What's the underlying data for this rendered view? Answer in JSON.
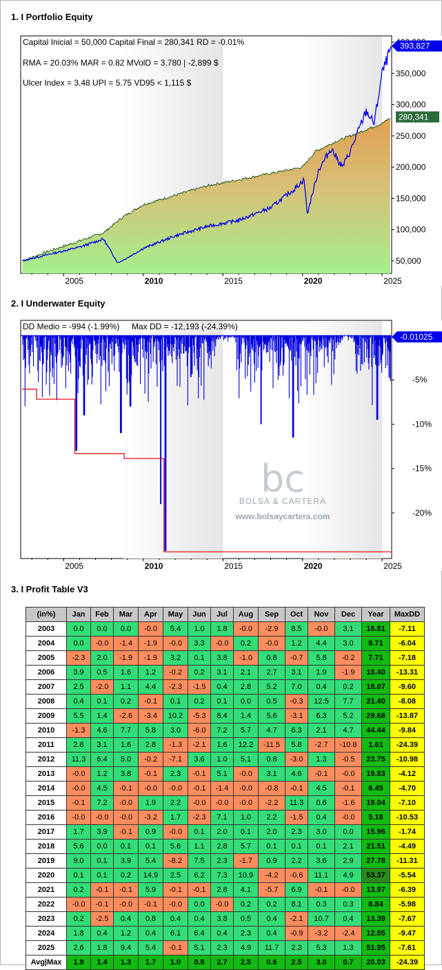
{
  "sections": {
    "equity_title": "1. I Portfolio Equity",
    "underwater_title": "2. I Underwater Equity",
    "profit_title": "3. I Profit Table V3"
  },
  "equity": {
    "info_line1": "Capital Inicial = 50,000  Capital Final = 280,341   RD = -0.01%",
    "info_line2": "RMA = 20.03%   MAR = 0.82   MVolD = 3,780 | -2,899 $",
    "info_line3": "Ulcer Index = 3.48   UPI = 5.75   VD95 < 1,115 $",
    "badge_blue": "393,827",
    "badge_green": "280,341",
    "blue_color": "#0000ee",
    "green_badge_color": "#2e6b3a",
    "y_ticks": [
      "50,000",
      "100,000",
      "150,000",
      "200,000",
      "250,000",
      "300,000",
      "350,000",
      "400,000"
    ],
    "x_ticks": [
      "2005",
      "2010",
      "2015",
      "2020",
      "2025"
    ]
  },
  "underwater": {
    "info_left": "DD Medio = -994 (-1.99%)",
    "info_right": "Max DD = -12,193 (-24.39%)",
    "badge": "-0.01025",
    "y_ticks": [
      "-5%",
      "-10%",
      "-15%",
      "-20%"
    ],
    "x_ticks": [
      "2005",
      "2010",
      "2015",
      "2020",
      "2025"
    ],
    "watermark_title": "BOLSA & CARTERA",
    "watermark_url": "www.bolsaycartera.com"
  },
  "chart_data": [
    {
      "type": "area",
      "title": "1. I Portfolio Equity",
      "ylim": [
        30000,
        410000
      ],
      "xlim": [
        2002.3,
        2025.6
      ],
      "series": [
        {
          "values_x": [
            2002.4,
            2004,
            2006,
            2007.5,
            2008.7,
            2010,
            2012,
            2014,
            2016,
            2018,
            2020,
            2020.8,
            2022,
            2023.5,
            2025,
            2025.6
          ],
          "values": [
            50000,
            65000,
            82000,
            95000,
            120000,
            140000,
            155000,
            170000,
            180000,
            190000,
            200000,
            225000,
            240000,
            255000,
            270000,
            280341
          ]
        },
        {
          "values_x": [
            2002.4,
            2004,
            2006,
            2007.5,
            2008.4,
            2009,
            2010,
            2012,
            2014,
            2016,
            2018,
            2019.5,
            2020.1,
            2020.3,
            2021,
            2021.8,
            2022.5,
            2023,
            2024,
            2024.5,
            2025,
            2025.6
          ],
          "values": [
            50000,
            60000,
            72000,
            85000,
            47000,
            55000,
            70000,
            90000,
            105000,
            115000,
            135000,
            165000,
            180000,
            125000,
            195000,
            230000,
            200000,
            225000,
            290000,
            270000,
            350000,
            393827
          ]
        }
      ]
    },
    {
      "type": "line",
      "title": "2. I Underwater Equity",
      "ylim": [
        -25,
        0
      ],
      "series": [
        {
          "values_x": [
            2002.4,
            2003.3,
            2003.3,
            2005.7,
            2005.7,
            2008.8,
            2008.8,
            2011.3,
            2011.3,
            2025.6
          ],
          "values": [
            -6.04,
            -6.04,
            -7.18,
            -7.18,
            -13.31,
            -13.31,
            -13.87,
            -13.87,
            -24.39,
            -24.39
          ]
        }
      ]
    },
    {
      "type": "table",
      "title": "3. I Profit Table V3",
      "headers": [
        "(in%)",
        "Jan",
        "Feb",
        "Mar",
        "Apr",
        "May",
        "Jun",
        "Jul",
        "Aug",
        "Sep",
        "Oct",
        "Nov",
        "Dec",
        "Year",
        "MaxDD"
      ],
      "rows": [
        [
          "2003",
          "0.0",
          "0.0",
          "0.0",
          "-0.0",
          "5.4",
          "1.0",
          "1.8",
          "-0.0",
          "-2.9",
          "8.5",
          "-0.0",
          "3.1",
          "16.81",
          "-7.11"
        ],
        [
          "2004",
          "0.0",
          "-0.0",
          "-1.4",
          "-1.9",
          "-0.0",
          "3.3",
          "-0.0",
          "0.2",
          "-0.0",
          "1.2",
          "4.4",
          "3.0",
          "8.71",
          "-6.04"
        ],
        [
          "2005",
          "-2.3",
          "2.0",
          "-1.9",
          "-1.9",
          "3.2",
          "0.1",
          "3.8",
          "-1.0",
          "0.8",
          "-0.7",
          "5.8",
          "-0.2",
          "7.71",
          "-7.18"
        ],
        [
          "2006",
          "3.9",
          "0.5",
          "1.6",
          "1.2",
          "-0.2",
          "0.2",
          "3.1",
          "2.1",
          "2.7",
          "3.1",
          "1.9",
          "-1.9",
          "18.40",
          "-13.31"
        ],
        [
          "2007",
          "2.5",
          "-2.0",
          "1.1",
          "4.4",
          "-2.3",
          "-1.5",
          "0.4",
          "2.8",
          "5.2",
          "7.0",
          "0.4",
          "0.2",
          "18.07",
          "-9.60"
        ],
        [
          "2008",
          "0.4",
          "0.1",
          "0.2",
          "-0.1",
          "0.1",
          "0.2",
          "0.1",
          "0.0",
          "0.5",
          "-0.3",
          "12.5",
          "7.7",
          "21.40",
          "-8.08"
        ],
        [
          "2009",
          "5.5",
          "1.4",
          "-2.6",
          "-3.4",
          "10.2",
          "-5.3",
          "8.4",
          "1.4",
          "5.6",
          "-3.1",
          "6.3",
          "5.2",
          "29.68",
          "-13.87"
        ],
        [
          "2010",
          "-1.3",
          "4.6",
          "7.7",
          "5.8",
          "3.0",
          "-6.0",
          "7.2",
          "5.7",
          "4.7",
          "6.3",
          "2.1",
          "4.7",
          "44.44",
          "-9.84"
        ],
        [
          "2011",
          "2.8",
          "3.1",
          "1.6",
          "2.8",
          "-1.3",
          "-2.1",
          "1.6",
          "12.2",
          "-11.5",
          "5.8",
          "-2.7",
          "-10.8",
          "1.61",
          "-24.39"
        ],
        [
          "2012",
          "11.3",
          "6.4",
          "5.0",
          "-0.2",
          "-7.1",
          "3.6",
          "1.0",
          "5.1",
          "0.8",
          "-3.0",
          "1.3",
          "-0.5",
          "23.75",
          "-10.98"
        ],
        [
          "2013",
          "-0.0",
          "1.2",
          "3.8",
          "-0.1",
          "2.3",
          "-0.1",
          "5.1",
          "-0.0",
          "3.1",
          "4.6",
          "-0.1",
          "-0.0",
          "19.83",
          "-4.12"
        ],
        [
          "2014",
          "-0.0",
          "4.5",
          "-0.1",
          "-0.0",
          "-0.0",
          "-0.1",
          "-1.4",
          "-0.0",
          "-0.8",
          "-0.1",
          "4.5",
          "-0.1",
          "6.45",
          "-4.70"
        ],
        [
          "2015",
          "-0.1",
          "7.2",
          "-0.0",
          "1.9",
          "2.2",
          "-0.0",
          "-0.0",
          "-0.0",
          "-2.2",
          "11.3",
          "0.6",
          "-1.6",
          "19.04",
          "-7.10"
        ],
        [
          "2016",
          "-0.0",
          "-0.0",
          "-0.0",
          "-3.2",
          "1.7",
          "-2.3",
          "7.1",
          "1.0",
          "2.2",
          "-1.5",
          "0.4",
          "-0.0",
          "5.18",
          "-10.53"
        ],
        [
          "2017",
          "1.7",
          "3.9",
          "-0.1",
          "0.9",
          "-0.0",
          "0.1",
          "2.0",
          "0.1",
          "2.0",
          "2.3",
          "3.0",
          "0.0",
          "15.96",
          "-1.74"
        ],
        [
          "2018",
          "5.6",
          "0.0",
          "0.1",
          "0.1",
          "5.6",
          "1.1",
          "2.8",
          "5.7",
          "0.1",
          "0.1",
          "0.1",
          "2.1",
          "21.51",
          "-4.49"
        ],
        [
          "2019",
          "9.0",
          "0.1",
          "3.9",
          "5.4",
          "-8.2",
          "7.5",
          "2.3",
          "-1.7",
          "0.9",
          "2.2",
          "3.6",
          "2.9",
          "27.78",
          "-11.31"
        ],
        [
          "2020",
          "0.1",
          "0.1",
          "0.2",
          "14.9",
          "2.5",
          "6.2",
          "7.3",
          "10.9",
          "-4.2",
          "-0.6",
          "11.1",
          "4.9",
          "53.37",
          "-5.54"
        ],
        [
          "2021",
          "0.2",
          "-0.1",
          "-0.1",
          "5.9",
          "-0.1",
          "-0.1",
          "2.8",
          "4.1",
          "-5.7",
          "6.9",
          "-0.1",
          "-0.0",
          "13.97",
          "-6.39"
        ],
        [
          "2022",
          "-0.0",
          "-0.1",
          "-0.0",
          "-0.1",
          "-0.0",
          "0.0",
          "-0.0",
          "0.2",
          "0.2",
          "8.1",
          "0.3",
          "0.3",
          "8.84",
          "-5.98"
        ],
        [
          "2023",
          "0.2",
          "-2.5",
          "0.4",
          "0.8",
          "0.4",
          "0.4",
          "3.8",
          "0.5",
          "0.4",
          "-2.1",
          "10.7",
          "0.4",
          "13.39",
          "-7.67"
        ],
        [
          "2024",
          "1.8",
          "0.4",
          "1.2",
          "0.4",
          "6.1",
          "6.4",
          "0.4",
          "2.3",
          "0.4",
          "-0.9",
          "-3.2",
          "-2.4",
          "12.85",
          "-9.47"
        ],
        [
          "2025",
          "2.6",
          "1.8",
          "9.4",
          "5.4",
          "-0.1",
          "5.1",
          "2.3",
          "4.9",
          "11.7",
          "2.3",
          "5.3",
          "1.3",
          "51.95",
          "-7.61"
        ]
      ],
      "footer": [
        "Avg|Max",
        "1.9",
        "1.4",
        "1.3",
        "1.7",
        "1.0",
        "0.8",
        "2.7",
        "2.5",
        "0.6",
        "2.5",
        "3.0",
        "0.7",
        "20.03",
        "-24.39"
      ]
    }
  ]
}
